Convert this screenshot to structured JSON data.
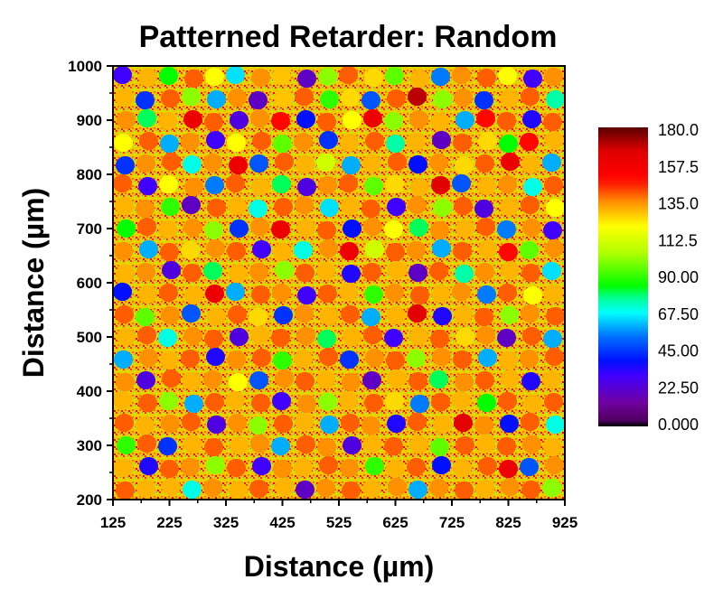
{
  "chart_data": {
    "type": "heatmap",
    "title": "Patterned Retarder: Random",
    "xlabel": "Distance (µm)",
    "ylabel": "Distance (µm)",
    "xlim": [
      125,
      925
    ],
    "ylim": [
      200,
      1000
    ],
    "xticks": [
      "125",
      "225",
      "325",
      "425",
      "525",
      "625",
      "725",
      "825",
      "925"
    ],
    "yticks": [
      "200",
      "300",
      "400",
      "500",
      "600",
      "700",
      "800",
      "900",
      "1000"
    ],
    "colorbar": {
      "range": [
        0,
        180
      ],
      "ticks": [
        "0.000",
        "22.50",
        "45.00",
        "67.50",
        "90.00",
        "112.5",
        "135.0",
        "157.5",
        "180.0"
      ]
    },
    "grid_cols": 20,
    "grid_rows": 20,
    "values": [
      [
        30,
        130,
        85,
        140,
        120,
        65,
        135,
        128,
        20,
        100,
        140,
        125,
        95,
        130,
        55,
        135,
        140,
        120,
        30,
        135
      ],
      [
        130,
        45,
        140,
        100,
        60,
        135,
        20,
        128,
        140,
        90,
        125,
        50,
        140,
        170,
        100,
        135,
        45,
        130,
        140,
        75
      ],
      [
        135,
        80,
        130,
        160,
        140,
        25,
        135,
        150,
        40,
        140,
        120,
        160,
        100,
        135,
        130,
        60,
        150,
        140,
        35,
        140
      ],
      [
        120,
        140,
        60,
        135,
        30,
        120,
        140,
        95,
        135,
        45,
        130,
        140,
        75,
        130,
        20,
        140,
        125,
        85,
        150,
        130
      ],
      [
        45,
        135,
        140,
        70,
        135,
        160,
        50,
        140,
        130,
        110,
        60,
        130,
        140,
        40,
        135,
        125,
        140,
        160,
        130,
        60
      ],
      [
        140,
        30,
        120,
        135,
        55,
        140,
        130,
        80,
        25,
        135,
        140,
        95,
        125,
        130,
        165,
        50,
        130,
        135,
        70,
        140
      ],
      [
        130,
        135,
        90,
        20,
        140,
        130,
        70,
        140,
        135,
        65,
        130,
        140,
        30,
        135,
        100,
        140,
        25,
        130,
        140,
        120
      ],
      [
        85,
        140,
        130,
        135,
        100,
        45,
        135,
        160,
        130,
        140,
        40,
        135,
        120,
        80,
        135,
        130,
        140,
        55,
        135,
        30
      ],
      [
        135,
        60,
        140,
        125,
        135,
        140,
        30,
        130,
        70,
        135,
        160,
        110,
        140,
        135,
        60,
        140,
        130,
        150,
        95,
        135
      ],
      [
        130,
        135,
        25,
        140,
        80,
        130,
        135,
        100,
        140,
        130,
        35,
        140,
        130,
        20,
        140,
        75,
        135,
        130,
        140,
        65
      ],
      [
        40,
        130,
        140,
        130,
        160,
        60,
        140,
        135,
        30,
        140,
        130,
        90,
        135,
        140,
        130,
        135,
        55,
        140,
        120,
        130
      ],
      [
        140,
        95,
        135,
        50,
        130,
        140,
        125,
        45,
        135,
        130,
        140,
        60,
        130,
        165,
        35,
        130,
        140,
        100,
        135,
        140
      ],
      [
        130,
        140,
        70,
        135,
        140,
        25,
        130,
        140,
        135,
        80,
        130,
        140,
        30,
        130,
        140,
        125,
        135,
        20,
        140,
        60
      ],
      [
        60,
        135,
        130,
        140,
        35,
        135,
        140,
        90,
        130,
        140,
        45,
        135,
        140,
        100,
        135,
        140,
        60,
        130,
        135,
        140
      ],
      [
        135,
        25,
        140,
        130,
        135,
        120,
        50,
        135,
        140,
        130,
        135,
        20,
        130,
        140,
        80,
        135,
        140,
        130,
        35,
        130
      ],
      [
        130,
        140,
        100,
        60,
        140,
        130,
        140,
        30,
        135,
        100,
        130,
        140,
        125,
        55,
        140,
        130,
        85,
        140,
        130,
        140
      ],
      [
        140,
        130,
        135,
        140,
        25,
        135,
        100,
        140,
        130,
        60,
        140,
        135,
        35,
        140,
        130,
        165,
        135,
        40,
        140,
        70
      ],
      [
        90,
        140,
        45,
        130,
        140,
        130,
        135,
        60,
        140,
        135,
        25,
        130,
        140,
        130,
        95,
        140,
        130,
        140,
        135,
        130
      ],
      [
        130,
        35,
        140,
        135,
        100,
        140,
        30,
        135,
        130,
        140,
        135,
        90,
        130,
        140,
        40,
        130,
        140,
        160,
        50,
        135
      ],
      [
        140,
        130,
        130,
        70,
        135,
        130,
        140,
        130,
        20,
        135,
        140,
        130,
        135,
        60,
        135,
        140,
        130,
        135,
        140,
        100
      ]
    ]
  }
}
